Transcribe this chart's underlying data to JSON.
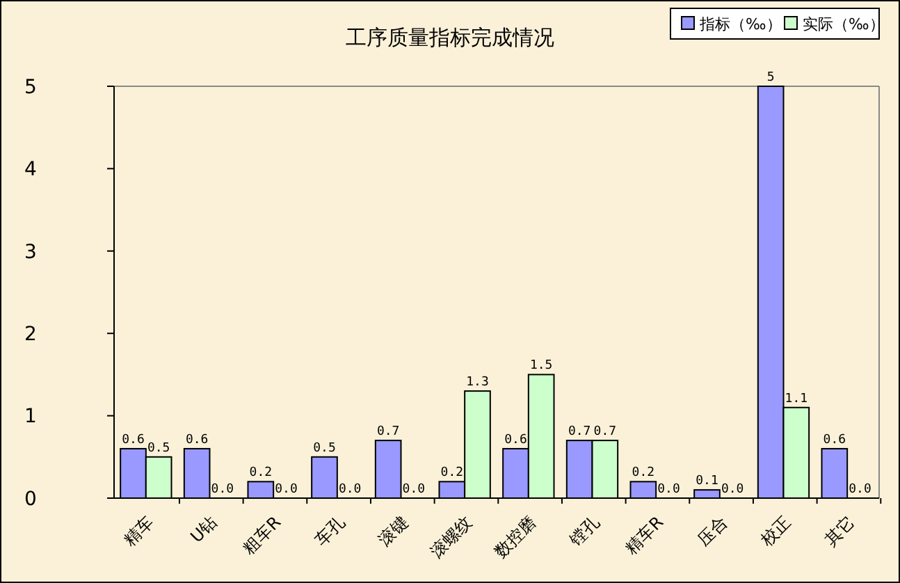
{
  "chart_data": {
    "type": "bar",
    "title": "工序质量指标完成情况",
    "categories": [
      "精车",
      "U钻",
      "粗车R",
      "车孔",
      "滚键",
      "滚螺纹",
      "数控磨",
      "镗孔",
      "精车R",
      "压合",
      "校正",
      "其它"
    ],
    "series": [
      {
        "name": "指标（‰）",
        "color": "#9999ff",
        "values": [
          0.6,
          0.6,
          0.2,
          0.5,
          0.7,
          0.2,
          0.6,
          0.7,
          0.2,
          0.1,
          5,
          0.6
        ],
        "value_labels": [
          "0.6",
          "0.6",
          "0.2",
          "0.5",
          "0.7",
          "0.2",
          "0.6",
          "0.7",
          "0.2",
          "0.1",
          "5",
          "0.6"
        ]
      },
      {
        "name": "实际（‰）",
        "color": "#ccffcc",
        "values": [
          0.5,
          0.0,
          0.0,
          0.0,
          0.0,
          1.3,
          1.5,
          0.7,
          0.0,
          0.0,
          1.1,
          0.0
        ],
        "value_labels": [
          "0.5",
          "0.0",
          "0.0",
          "0.0",
          "0.0",
          "1.3",
          "1.5",
          "0.7",
          "0.0",
          "0.0",
          "1.1",
          "0.0"
        ]
      }
    ],
    "ylim": [
      0,
      5
    ],
    "yticks": [
      0,
      1,
      2,
      3,
      4,
      5
    ],
    "grid": false,
    "legend": "top right"
  }
}
